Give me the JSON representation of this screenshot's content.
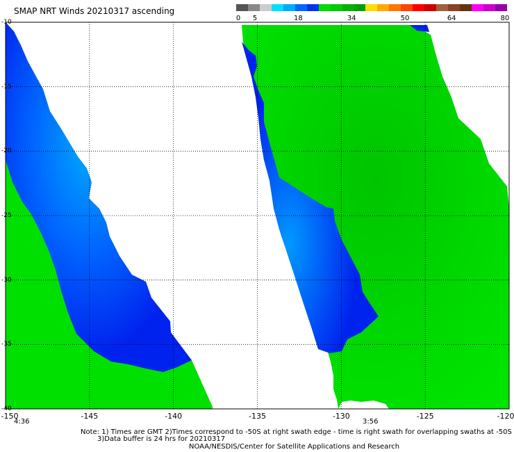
{
  "title": "SMAP NRT Winds 20210317 ascending",
  "color_scale": {
    "colors": [
      "#555555",
      "#888888",
      "#cccccc",
      "#00e0ff",
      "#00aaff",
      "#0066ff",
      "#0033ee",
      "#00dd00",
      "#00cc00",
      "#00b400",
      "#00a000",
      "#ffdd00",
      "#ffaa00",
      "#ff7700",
      "#ff4400",
      "#ff0000",
      "#cc0000",
      "#a06040",
      "#884420",
      "#663311",
      "#ff00ff",
      "#cc00cc",
      "#9900aa"
    ],
    "labels": [
      {
        "text": "0",
        "value": 0
      },
      {
        "text": "5",
        "value": 5
      },
      {
        "text": "18",
        "value": 18
      },
      {
        "text": "34",
        "value": 34
      },
      {
        "text": "50",
        "value": 50
      },
      {
        "text": "64",
        "value": 64
      },
      {
        "text": "80",
        "value": 80
      }
    ],
    "max": 80
  },
  "map": {
    "lon_range": [
      -150,
      -120
    ],
    "lat_range": [
      -40,
      -10
    ],
    "x_ticks": [
      "-150",
      "-145",
      "-140",
      "-135",
      "-130",
      "-125",
      "-120"
    ],
    "y_ticks": [
      "-40",
      "-35",
      "-30",
      "-25",
      "-20",
      "-15",
      "-10"
    ],
    "grid": "dotted",
    "colors": {
      "ocean_green": "#00dd00",
      "ocean_blue": "#0022ee",
      "light_blue": "#00aaff",
      "background": "#ffffff"
    },
    "swath_times": [
      "4:36",
      "3:56"
    ]
  },
  "notes": {
    "line1": "Note: 1) Times are GMT 2)Times correspond to -50S at right swath edge - time is right swath for overlapping swaths at -50S",
    "line2": "3)Data buffer is 24 hrs for 20210317",
    "line3": "NOAA/NESDIS/Center for Satellite Applications and Research"
  }
}
